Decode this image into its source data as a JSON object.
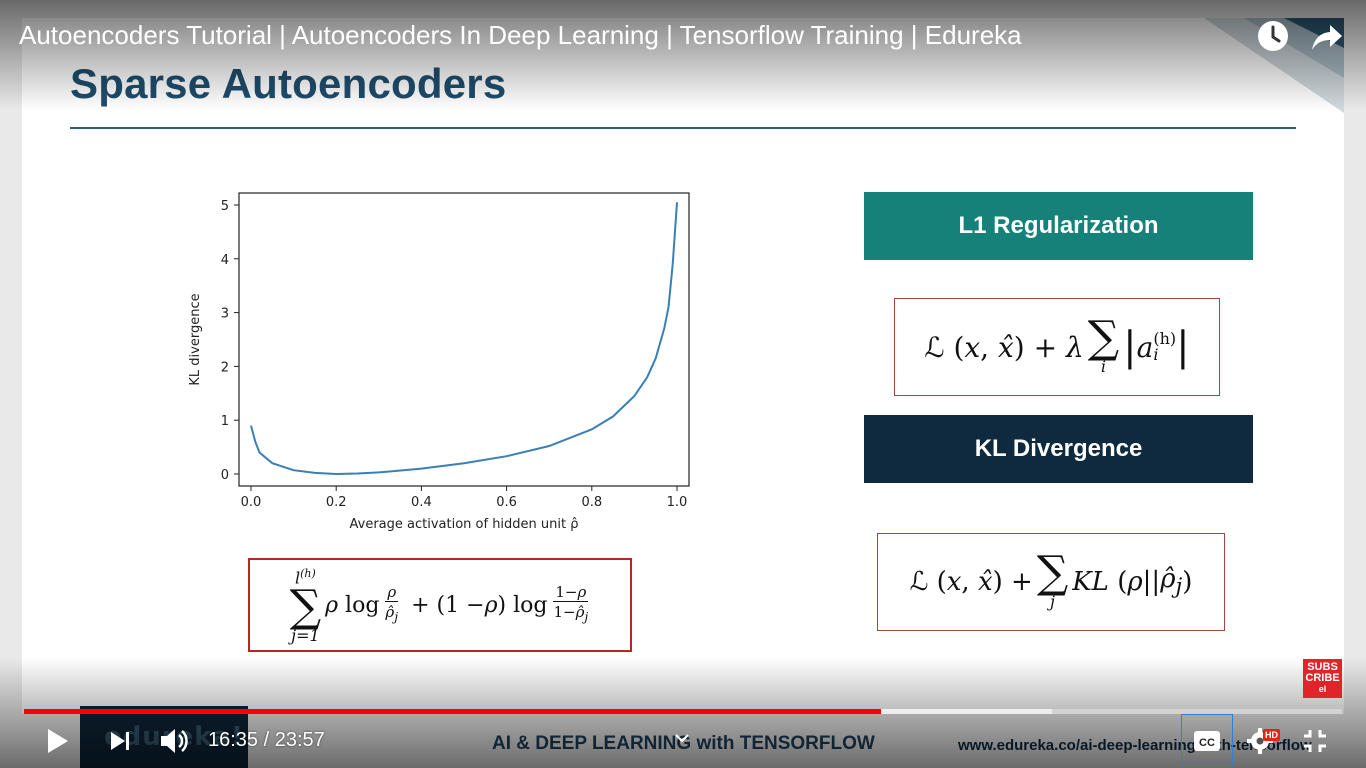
{
  "video": {
    "title": "Autoencoders Tutorial | Autoencoders In Deep Learning | Tensorflow Training | Edureka",
    "time_current": "16:35",
    "time_separator": "/",
    "time_total": "23:57",
    "progress_played": 0.65,
    "progress_buffered": 0.78
  },
  "slide": {
    "title": "Sparse Autoencoders",
    "l1_label": "L1 Regularization",
    "kl_label": "KL Divergence",
    "formula_kl_sum": {
      "upper": "l(h)",
      "lower": "j=1",
      "text": "ρ log ρ/ρ̂j + (1 − ρ) log (1−ρ)/(1−ρ̂j)"
    },
    "formula_l1": "ℒ(x, x̂) + λ Σi |ai(h)|",
    "formula_kl_loss": "ℒ(x, x̂) + Σj KL(ρ||ρ̂j)"
  },
  "chart_data": {
    "type": "line",
    "xlabel": "Average activation of hidden unit ρ̂",
    "ylabel": "KL divergence",
    "xlim": [
      0.0,
      1.0
    ],
    "ylim": [
      0,
      5
    ],
    "x_ticks": [
      "0.0",
      "0.2",
      "0.4",
      "0.6",
      "0.8",
      "1.0"
    ],
    "y_ticks": [
      "0",
      "1",
      "2",
      "3",
      "4",
      "5"
    ],
    "x": [
      0.0,
      0.01,
      0.02,
      0.05,
      0.1,
      0.15,
      0.2,
      0.25,
      0.3,
      0.4,
      0.5,
      0.6,
      0.7,
      0.8,
      0.85,
      0.9,
      0.93,
      0.95,
      0.97,
      0.98,
      0.99,
      1.0
    ],
    "y": [
      0.9,
      0.6,
      0.4,
      0.2,
      0.07,
      0.02,
      0.0,
      0.01,
      0.03,
      0.1,
      0.2,
      0.33,
      0.52,
      0.83,
      1.07,
      1.45,
      1.8,
      2.15,
      2.7,
      3.1,
      3.9,
      5.05
    ],
    "line_color": "#3a7fb5",
    "grid": false
  },
  "footer": {
    "brand": "edureka!",
    "course": "AI & DEEP LEARNING with TENSORFLOW",
    "url": "www.edureka.co/ai-deep-learning-with-tensorflow"
  },
  "badges": {
    "subscribe_line1": "SUBS",
    "subscribe_line2": "CRIBE",
    "subscribe_line3": "el",
    "hd": "HD"
  },
  "colors": {
    "title": "#1e4e6e",
    "teal": "#168178",
    "navy": "#0f2a3f",
    "red_accent": "#b22a22",
    "progress": "#ff0000"
  },
  "icons": [
    "watch-later-icon",
    "share-icon",
    "play-icon",
    "next-icon",
    "volume-icon",
    "chevron-down-icon",
    "cc-icon",
    "settings-icon",
    "exit-fullscreen-icon"
  ]
}
